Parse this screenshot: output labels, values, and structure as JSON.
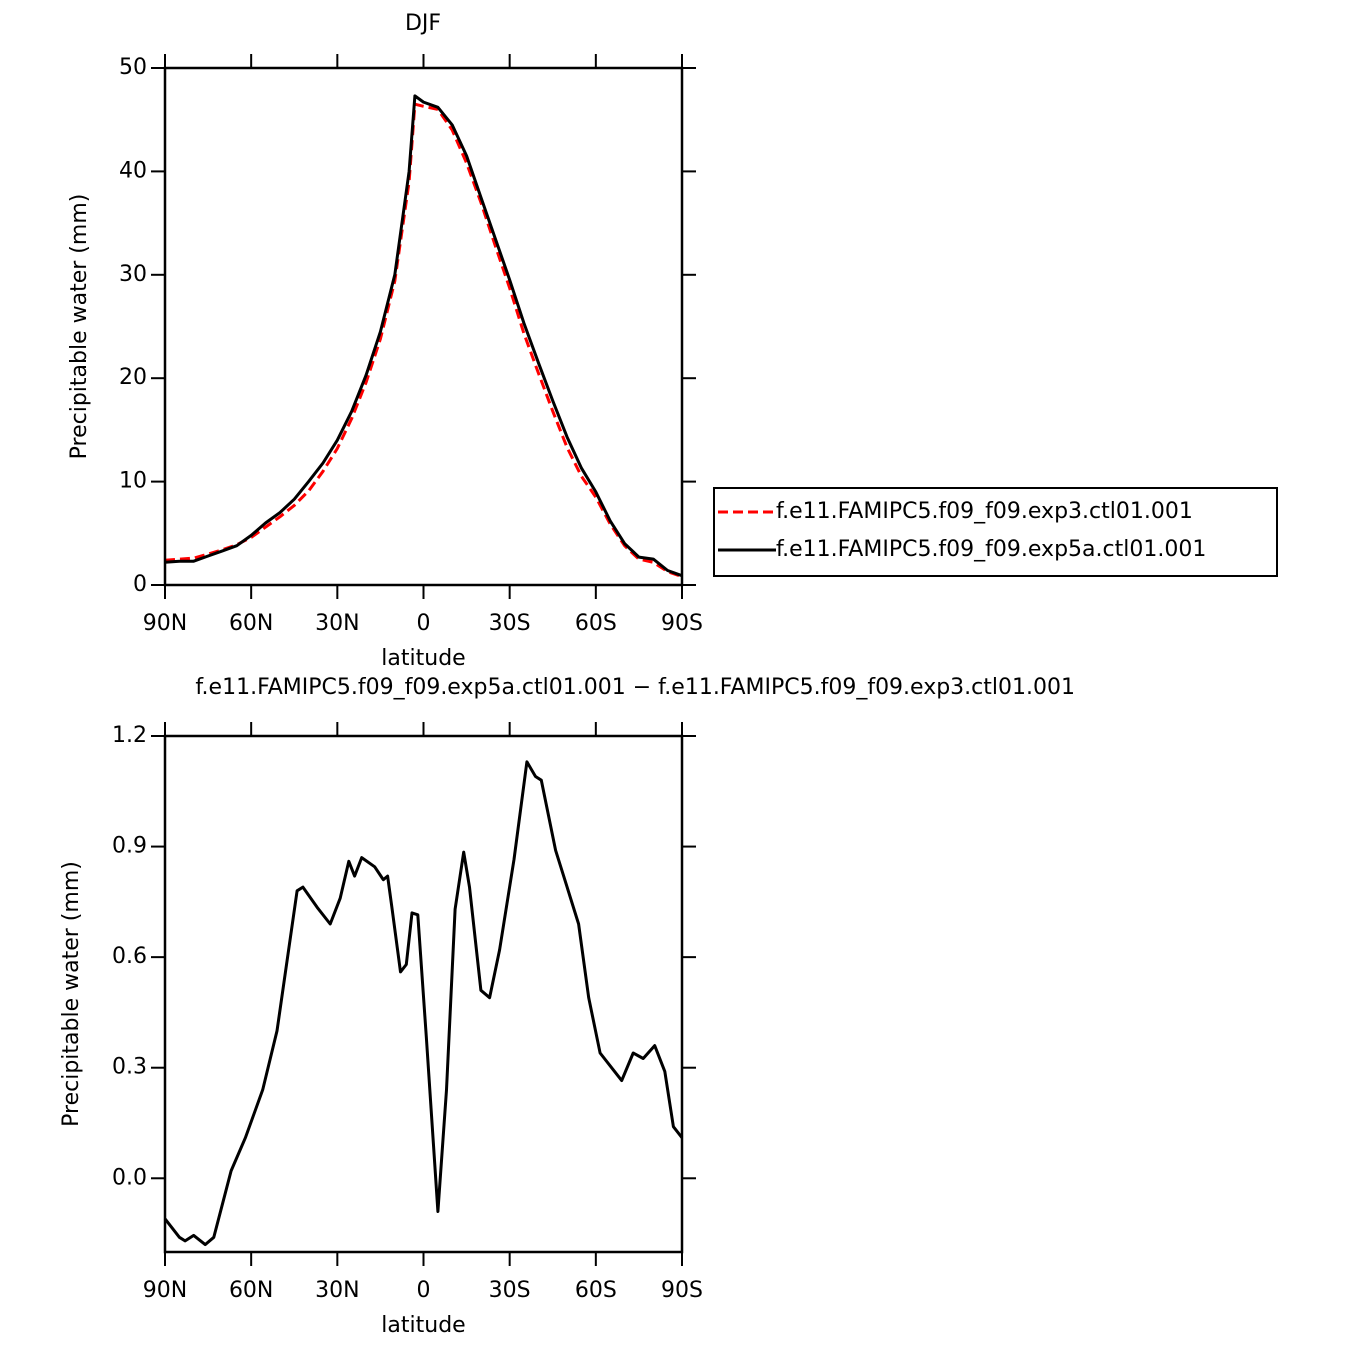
{
  "chart_data": [
    {
      "type": "line",
      "title": "DJF",
      "x_label": "latitude",
      "y_label": "Precipitable water (mm)",
      "x": [
        90,
        85,
        80,
        75,
        70,
        65,
        60,
        55,
        50,
        45,
        40,
        35,
        30,
        25,
        20,
        15,
        10,
        5,
        3,
        0,
        -5,
        -10,
        -15,
        -20,
        -25,
        -30,
        -35,
        -40,
        -45,
        -50,
        -55,
        -60,
        -65,
        -70,
        -75,
        -80,
        -85,
        -90
      ],
      "xlim": [
        90,
        -90
      ],
      "xticks": [
        {
          "value": 90,
          "label": "90N"
        },
        {
          "value": 60,
          "label": "60N"
        },
        {
          "value": 30,
          "label": "30N"
        },
        0,
        {
          "value": -30,
          "label": "30S"
        },
        {
          "value": -60,
          "label": "60S"
        },
        {
          "value": -90,
          "label": "90S"
        }
      ],
      "ylim": [
        0,
        50
      ],
      "yticks": [
        0,
        10,
        20,
        30,
        40,
        50
      ],
      "legend": "right",
      "series": [
        {
          "name": "f.e11.FAMIPC5.f09_f09.exp3.ctl01.001",
          "color": "#ff0000",
          "dash": true,
          "values": [
            2.4,
            2.5,
            2.6,
            3.0,
            3.4,
            3.9,
            4.6,
            5.6,
            6.6,
            7.7,
            9.1,
            11.0,
            13.2,
            16.1,
            19.6,
            23.8,
            29.4,
            39.0,
            46.5,
            46.3,
            46.0,
            44.0,
            40.8,
            37.0,
            32.8,
            28.7,
            24.3,
            20.5,
            16.8,
            13.3,
            10.5,
            8.5,
            5.9,
            3.8,
            2.5,
            2.2,
            1.3,
            0.8
          ]
        },
        {
          "name": "f.e11.FAMIPC5.f09_f09.exp5a.ctl01.001",
          "color": "#000000",
          "dash": false,
          "values": [
            2.2,
            2.3,
            2.3,
            2.8,
            3.3,
            3.8,
            4.8,
            6.0,
            7.0,
            8.3,
            10.0,
            11.8,
            14.0,
            16.8,
            20.3,
            24.5,
            30.0,
            40.0,
            47.3,
            46.7,
            46.2,
            44.5,
            41.5,
            37.5,
            33.5,
            29.5,
            25.3,
            21.5,
            17.8,
            14.3,
            11.3,
            9.0,
            6.2,
            4.0,
            2.7,
            2.5,
            1.4,
            0.9
          ]
        }
      ]
    },
    {
      "type": "line",
      "title": "f.e11.FAMIPC5.f09_f09.exp5a.ctl01.001 − f.e11.FAMIPC5.f09_f09.exp3.ctl01.001",
      "x_label": "latitude",
      "y_label": "Precipitable water (mm)",
      "x": [
        90,
        85,
        83,
        80,
        76,
        73,
        67,
        62,
        56,
        51,
        44,
        42,
        37,
        32.5,
        29,
        26,
        24,
        21.5,
        17,
        14,
        12.5,
        11,
        8,
        6,
        4,
        2,
        -1,
        -5,
        -8,
        -11,
        -14,
        -16,
        -20,
        -23,
        -26.5,
        -31.5,
        -36,
        -39,
        -41,
        -46,
        -50,
        -54,
        -57.5,
        -61.5,
        -65.5,
        -69,
        -73,
        -76.5,
        -80.5,
        -84,
        -87,
        -90
      ],
      "xlim": [
        90,
        -90
      ],
      "xticks": [
        {
          "value": 90,
          "label": "90N"
        },
        {
          "value": 60,
          "label": "60N"
        },
        {
          "value": 30,
          "label": "30N"
        },
        0,
        {
          "value": -30,
          "label": "30S"
        },
        {
          "value": -60,
          "label": "60S"
        },
        {
          "value": -90,
          "label": "90S"
        }
      ],
      "ylim": [
        -0.2,
        1.2
      ],
      "yticks": [
        {
          "value": 0,
          "label": "0.0"
        },
        0.3,
        0.6,
        0.9,
        1.2
      ],
      "series": [
        {
          "color": "#000000",
          "dash": false,
          "values": [
            -0.11,
            -0.16,
            -0.17,
            -0.155,
            -0.18,
            -0.16,
            0.02,
            0.11,
            0.24,
            0.4,
            0.78,
            0.79,
            0.735,
            0.69,
            0.76,
            0.86,
            0.82,
            0.87,
            0.845,
            0.81,
            0.82,
            0.735,
            0.56,
            0.58,
            0.72,
            0.715,
            0.38,
            -0.09,
            0.24,
            0.73,
            0.885,
            0.79,
            0.51,
            0.49,
            0.62,
            0.865,
            1.13,
            1.09,
            1.08,
            0.89,
            0.79,
            0.69,
            0.49,
            0.34,
            0.3,
            0.265,
            0.34,
            0.325,
            0.36,
            0.29,
            0.14,
            0.11
          ]
        }
      ]
    }
  ]
}
